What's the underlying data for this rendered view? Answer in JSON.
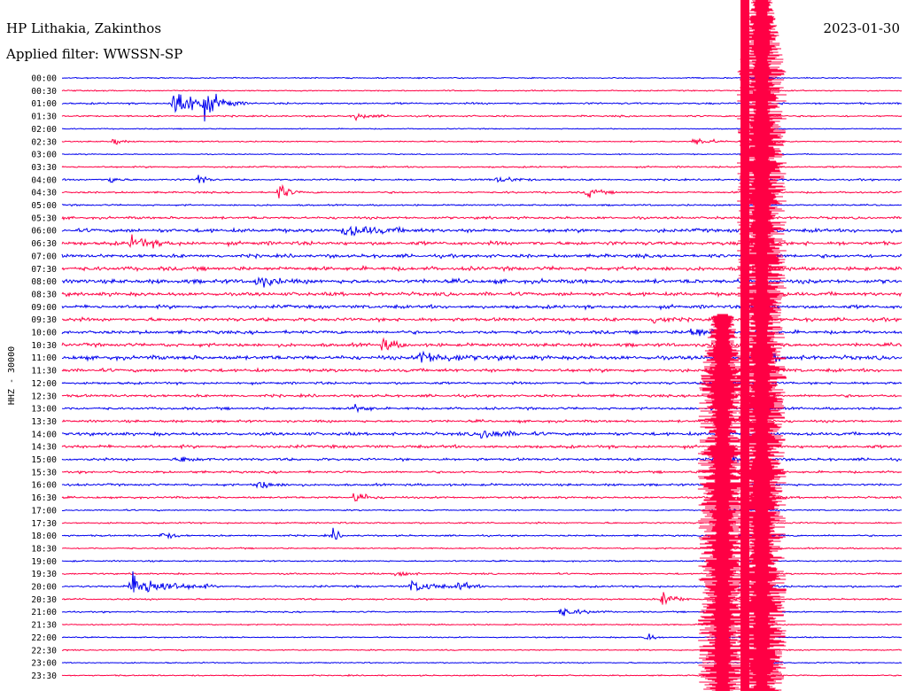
{
  "header": {
    "station": "HP Lithakia, Zakinthos",
    "filter": "Applied filter: WWSSN-SP",
    "date": "2023-01-30"
  },
  "chart_data": {
    "type": "line",
    "title": "HP Lithakia, Zakinthos",
    "subtitle": "Applied filter: WWSSN-SP",
    "ylabel": "HHZ - 30000",
    "date": "2023-01-30",
    "row_labels": [
      "00:00",
      "00:30",
      "01:00",
      "01:30",
      "02:00",
      "02:30",
      "03:00",
      "03:30",
      "04:00",
      "04:30",
      "05:00",
      "05:30",
      "06:00",
      "06:30",
      "07:00",
      "07:30",
      "08:00",
      "08:30",
      "09:00",
      "09:30",
      "10:00",
      "10:30",
      "11:00",
      "11:30",
      "12:00",
      "12:30",
      "13:00",
      "13:30",
      "14:00",
      "14:30",
      "15:00",
      "15:30",
      "16:00",
      "16:30",
      "17:00",
      "17:30",
      "18:00",
      "18:30",
      "19:00",
      "19:30",
      "20:00",
      "20:30",
      "21:00",
      "21:30",
      "22:00",
      "22:30",
      "23:00",
      "23:30"
    ],
    "colors": [
      "#0000ee",
      "#ff0044"
    ],
    "row_activity": [
      0.6,
      0.6,
      0.9,
      0.8,
      0.5,
      0.6,
      0.5,
      0.8,
      0.9,
      0.9,
      0.8,
      1.2,
      1.8,
      1.8,
      1.7,
      1.9,
      2.0,
      1.8,
      1.7,
      1.7,
      1.6,
      1.7,
      2.0,
      1.6,
      1.2,
      1.3,
      1.2,
      1.2,
      1.6,
      1.5,
      1.3,
      1.1,
      1.1,
      1.0,
      0.7,
      0.8,
      0.8,
      0.7,
      0.7,
      0.8,
      1.0,
      0.8,
      0.7,
      0.6,
      0.6,
      0.6,
      0.6,
      0.6
    ],
    "events": [
      {
        "row": 2,
        "minute": 4.0,
        "amp": 6.0,
        "len": 2.5
      },
      {
        "row": 2,
        "minute": 5.1,
        "amp": 2.5,
        "len": 1.5
      },
      {
        "row": 3,
        "minute": 10.5,
        "amp": 1.0,
        "len": 1.5
      },
      {
        "row": 5,
        "minute": 1.9,
        "amp": 1.5,
        "len": 0.6
      },
      {
        "row": 5,
        "minute": 22.6,
        "amp": 1.5,
        "len": 1.5
      },
      {
        "row": 8,
        "minute": 1.8,
        "amp": 2.0,
        "len": 0.5
      },
      {
        "row": 8,
        "minute": 4.9,
        "amp": 3.0,
        "len": 0.5
      },
      {
        "row": 8,
        "minute": 15.6,
        "amp": 1.2,
        "len": 1.5
      },
      {
        "row": 9,
        "minute": 7.8,
        "amp": 3.0,
        "len": 0.8
      },
      {
        "row": 9,
        "minute": 18.8,
        "amp": 1.5,
        "len": 1.2
      },
      {
        "row": 12,
        "minute": 10.1,
        "amp": 2.0,
        "len": 3.0
      },
      {
        "row": 13,
        "minute": 2.5,
        "amp": 2.0,
        "len": 2.0
      },
      {
        "row": 16,
        "minute": 7.0,
        "amp": 2.0,
        "len": 1.5
      },
      {
        "row": 19,
        "minute": 21.2,
        "amp": 1.8,
        "len": 1.0
      },
      {
        "row": 20,
        "minute": 22.5,
        "amp": 1.8,
        "len": 2.0
      },
      {
        "row": 21,
        "minute": 11.5,
        "amp": 2.2,
        "len": 1.0
      },
      {
        "row": 22,
        "minute": 12.8,
        "amp": 2.0,
        "len": 3.0
      },
      {
        "row": 22,
        "minute": 25.0,
        "amp": 2.0,
        "len": 1.5
      },
      {
        "row": 26,
        "minute": 10.5,
        "amp": 1.5,
        "len": 1.0
      },
      {
        "row": 28,
        "minute": 15.0,
        "amp": 1.8,
        "len": 2.0
      },
      {
        "row": 30,
        "minute": 4.3,
        "amp": 1.2,
        "len": 1.0
      },
      {
        "row": 30,
        "minute": 23.6,
        "amp": 1.5,
        "len": 1.5
      },
      {
        "row": 32,
        "minute": 7.0,
        "amp": 1.5,
        "len": 1.5
      },
      {
        "row": 33,
        "minute": 10.5,
        "amp": 2.2,
        "len": 1.0
      },
      {
        "row": 36,
        "minute": 3.6,
        "amp": 1.2,
        "len": 1.0
      },
      {
        "row": 36,
        "minute": 9.7,
        "amp": 2.5,
        "len": 0.5
      },
      {
        "row": 39,
        "minute": 12.0,
        "amp": 1.5,
        "len": 1.0
      },
      {
        "row": 40,
        "minute": 2.5,
        "amp": 4.5,
        "len": 3.0
      },
      {
        "row": 40,
        "minute": 12.5,
        "amp": 2.0,
        "len": 2.0
      },
      {
        "row": 40,
        "minute": 14.2,
        "amp": 1.5,
        "len": 1.0
      },
      {
        "row": 41,
        "minute": 21.5,
        "amp": 3.0,
        "len": 1.0
      },
      {
        "row": 42,
        "minute": 17.8,
        "amp": 1.5,
        "len": 2.0
      },
      {
        "row": 44,
        "minute": 20.9,
        "amp": 1.8,
        "len": 0.6
      }
    ],
    "strong_motion": [
      {
        "minute": 24.4,
        "row_start": 0,
        "row_end": 47,
        "style": "spike"
      },
      {
        "minute": 25.0,
        "row_start": 0,
        "row_end": 47,
        "style": "saturated"
      },
      {
        "minute": 23.6,
        "row_start": 20,
        "row_end": 47,
        "style": "saturated"
      }
    ]
  }
}
